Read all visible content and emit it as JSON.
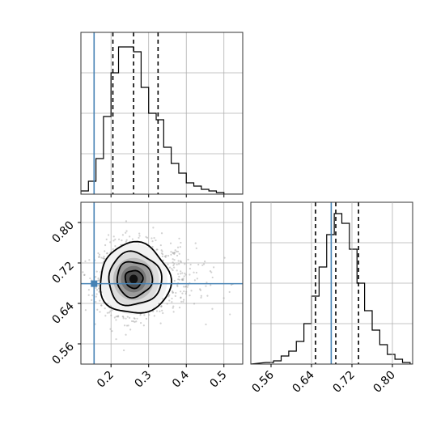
{
  "chart_data": [
    {
      "type": "histogram",
      "panel": "top-left",
      "variable": "param_1",
      "xlim": [
        0.12,
        0.55
      ],
      "x_ticks": [
        "0.2",
        "0.3",
        "0.4",
        "0.5"
      ],
      "grid": true,
      "bins": [
        {
          "x0": 0.12,
          "x1": 0.14,
          "count": 2
        },
        {
          "x0": 0.14,
          "x1": 0.16,
          "count": 8
        },
        {
          "x0": 0.16,
          "x1": 0.18,
          "count": 22
        },
        {
          "x0": 0.18,
          "x1": 0.2,
          "count": 48
        },
        {
          "x0": 0.2,
          "x1": 0.22,
          "count": 75
        },
        {
          "x0": 0.22,
          "x1": 0.24,
          "count": 91
        },
        {
          "x0": 0.24,
          "x1": 0.26,
          "count": 91
        },
        {
          "x0": 0.26,
          "x1": 0.28,
          "count": 88
        },
        {
          "x0": 0.28,
          "x1": 0.3,
          "count": 66
        },
        {
          "x0": 0.3,
          "x1": 0.32,
          "count": 50
        },
        {
          "x0": 0.32,
          "x1": 0.34,
          "count": 46
        },
        {
          "x0": 0.34,
          "x1": 0.36,
          "count": 29
        },
        {
          "x0": 0.36,
          "x1": 0.38,
          "count": 19
        },
        {
          "x0": 0.38,
          "x1": 0.4,
          "count": 13
        },
        {
          "x0": 0.4,
          "x1": 0.42,
          "count": 7
        },
        {
          "x0": 0.42,
          "x1": 0.44,
          "count": 5
        },
        {
          "x0": 0.44,
          "x1": 0.46,
          "count": 3
        },
        {
          "x0": 0.46,
          "x1": 0.48,
          "count": 2
        },
        {
          "x0": 0.48,
          "x1": 0.5,
          "count": 1
        }
      ],
      "ylim": [
        0,
        100
      ],
      "quantiles": [
        0.205,
        0.26,
        0.325
      ],
      "truth": 0.155
    },
    {
      "type": "histogram",
      "panel": "bottom-right",
      "variable": "param_2",
      "xlim": [
        0.52,
        0.84
      ],
      "x_ticks": [
        "0.56",
        "0.64",
        "0.72",
        "0.80"
      ],
      "grid": true,
      "bins": [
        {
          "x0": 0.55,
          "x1": 0.565,
          "count": 1
        },
        {
          "x0": 0.565,
          "x1": 0.58,
          "count": 2
        },
        {
          "x0": 0.58,
          "x1": 0.595,
          "count": 5
        },
        {
          "x0": 0.595,
          "x1": 0.61,
          "count": 8
        },
        {
          "x0": 0.61,
          "x1": 0.625,
          "count": 14
        },
        {
          "x0": 0.625,
          "x1": 0.64,
          "count": 25
        },
        {
          "x0": 0.64,
          "x1": 0.655,
          "count": 42
        },
        {
          "x0": 0.655,
          "x1": 0.67,
          "count": 60
        },
        {
          "x0": 0.67,
          "x1": 0.685,
          "count": 80
        },
        {
          "x0": 0.685,
          "x1": 0.7,
          "count": 93
        },
        {
          "x0": 0.7,
          "x1": 0.715,
          "count": 87
        },
        {
          "x0": 0.715,
          "x1": 0.73,
          "count": 71
        },
        {
          "x0": 0.73,
          "x1": 0.745,
          "count": 50
        },
        {
          "x0": 0.745,
          "x1": 0.76,
          "count": 33
        },
        {
          "x0": 0.76,
          "x1": 0.775,
          "count": 21
        },
        {
          "x0": 0.775,
          "x1": 0.79,
          "count": 12
        },
        {
          "x0": 0.79,
          "x1": 0.805,
          "count": 6
        },
        {
          "x0": 0.805,
          "x1": 0.82,
          "count": 3
        },
        {
          "x0": 0.82,
          "x1": 0.835,
          "count": 1
        }
      ],
      "ylim": [
        0,
        100
      ],
      "quantiles": [
        0.648,
        0.688,
        0.733
      ],
      "truth": 0.679
    },
    {
      "type": "contour",
      "panel": "bottom-left",
      "x_variable": "param_1",
      "y_variable": "param_2",
      "xlim": [
        0.12,
        0.55
      ],
      "ylim": [
        0.52,
        0.84
      ],
      "x_ticks": [
        "0.2",
        "0.3",
        "0.4",
        "0.5"
      ],
      "y_ticks": [
        "0.56",
        "0.64",
        "0.72",
        "0.80"
      ],
      "grid": true,
      "center": {
        "x": 0.26,
        "y": 0.688
      },
      "spread": {
        "x": 0.045,
        "y": 0.035
      },
      "contour_levels_sigma": [
        0.5,
        1.0,
        1.5,
        2.0
      ],
      "truth": {
        "x": 0.155,
        "y": 0.679
      },
      "truth_color": "#4682b4"
    }
  ],
  "colors": {
    "truth": "#4682b4",
    "grid": "#b0b0b0",
    "line": "#000000"
  }
}
